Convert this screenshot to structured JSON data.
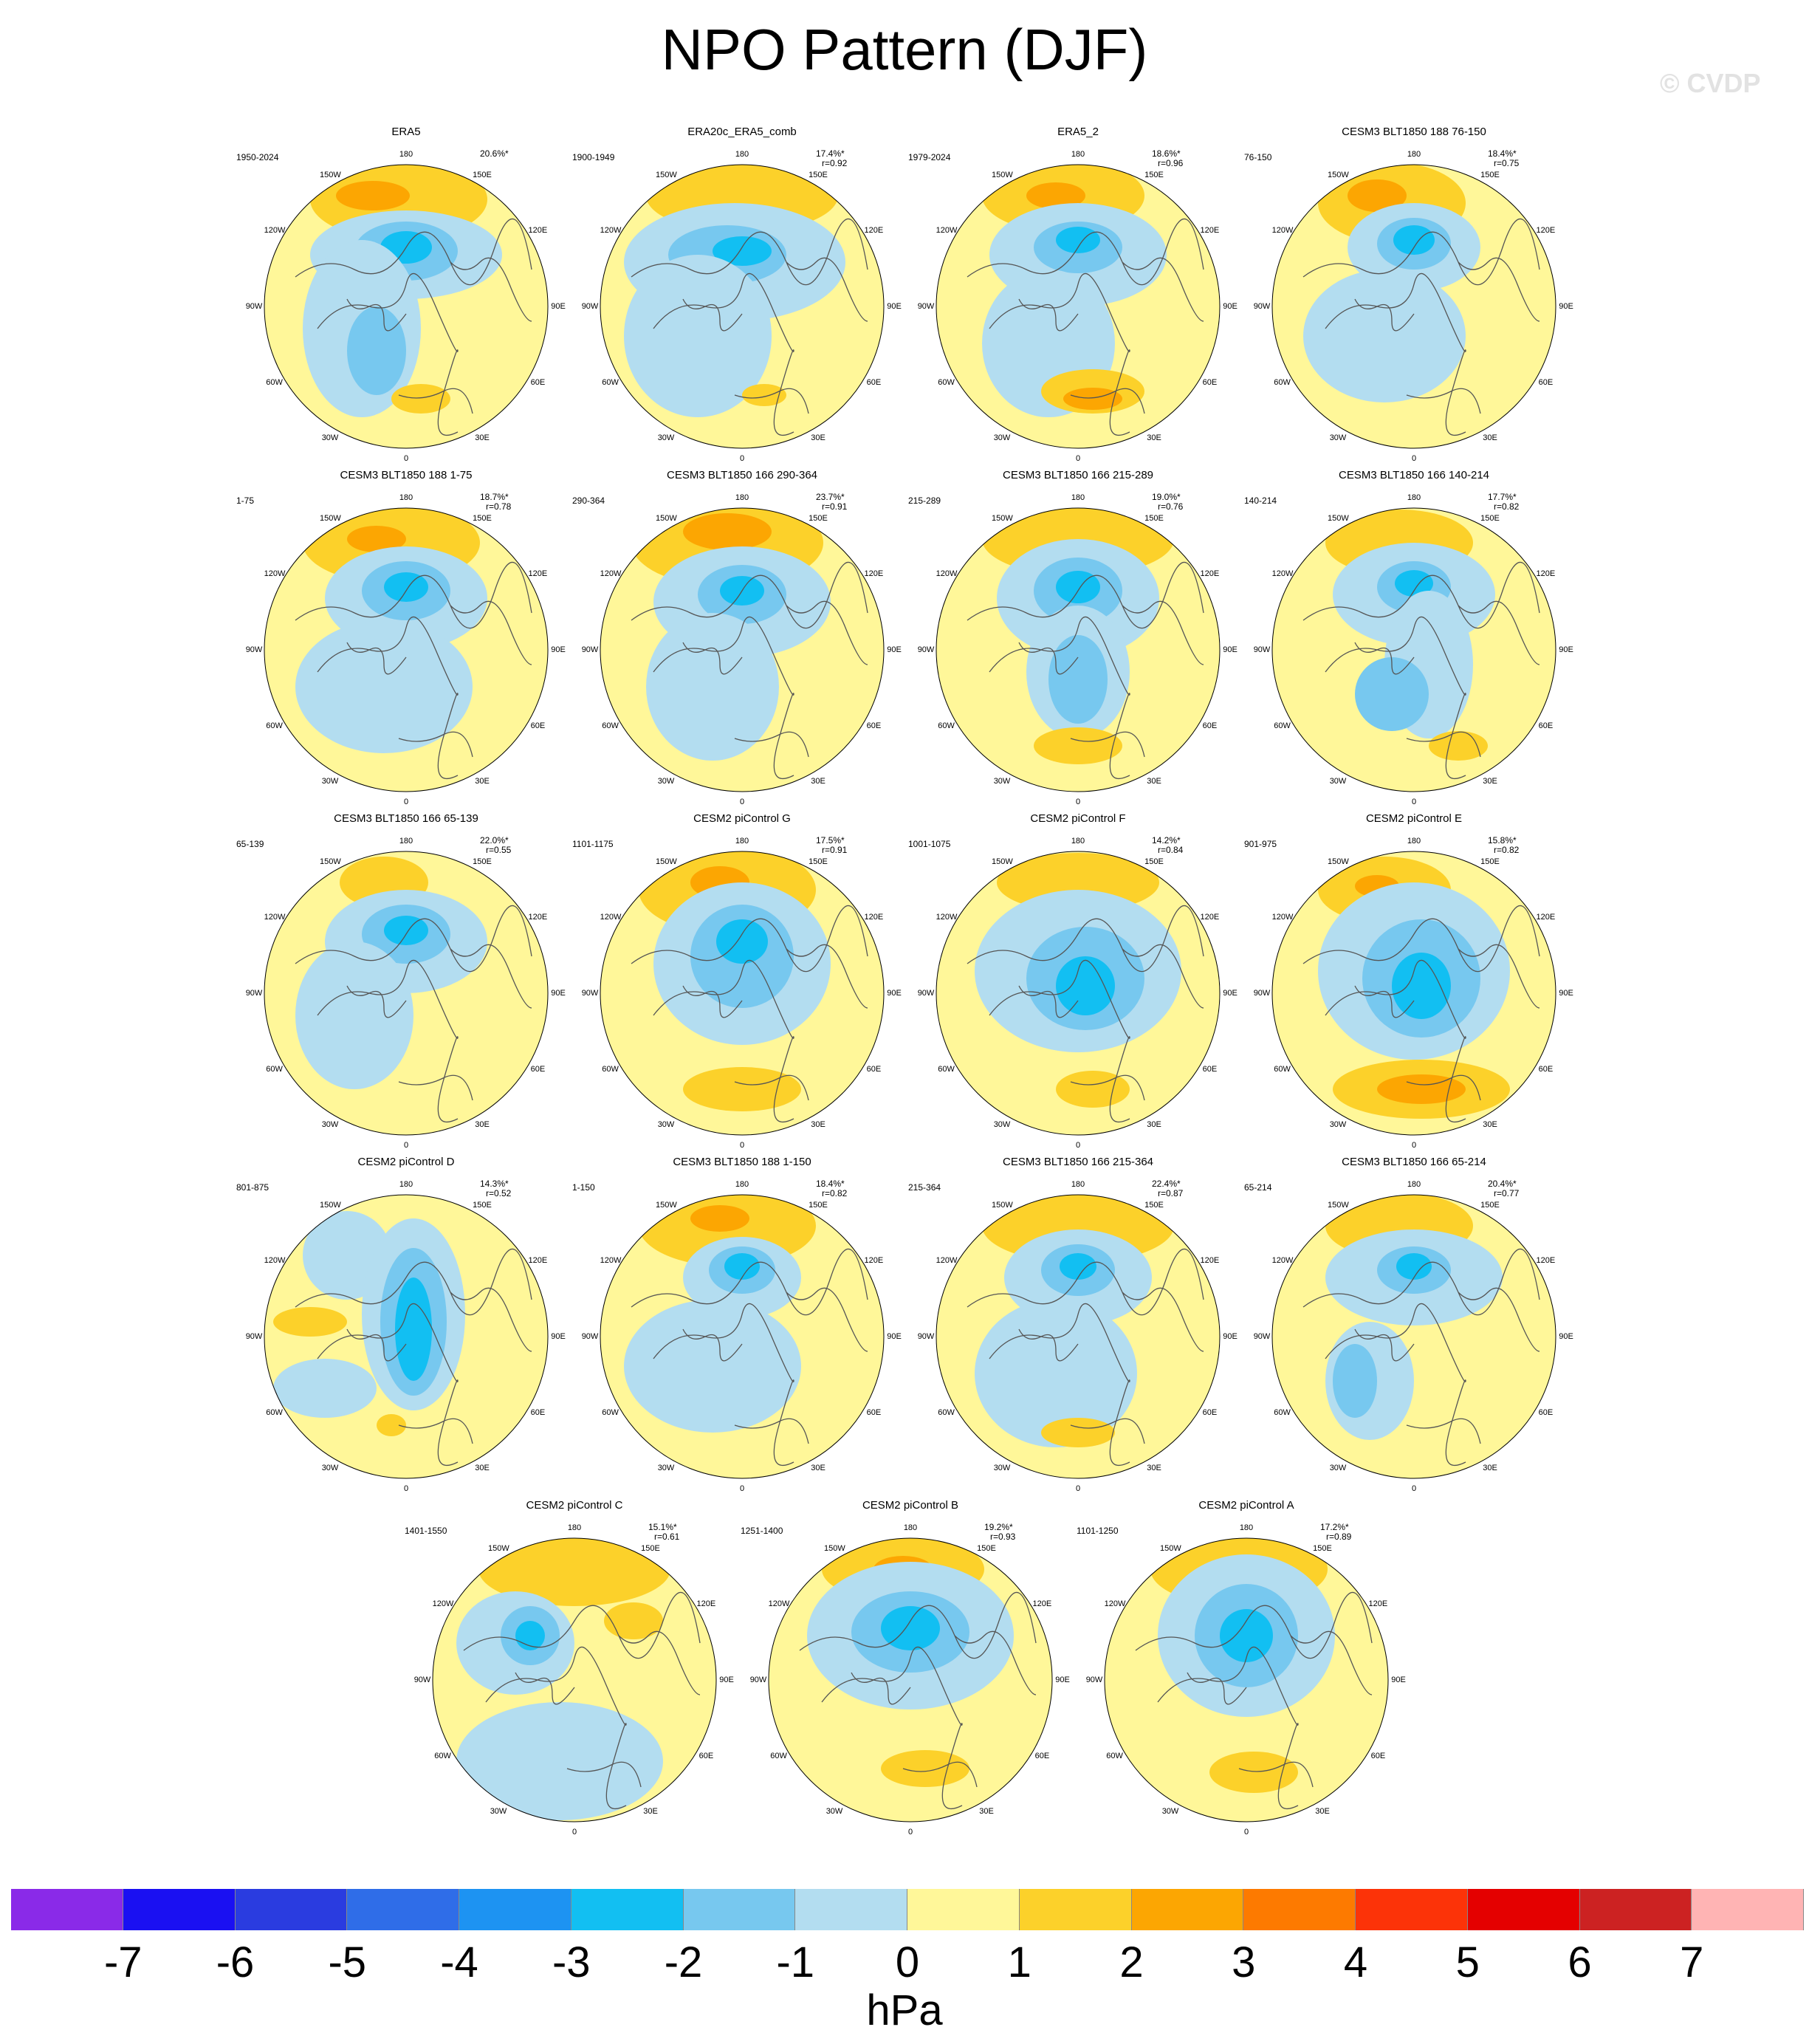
{
  "title": "NPO Pattern (DJF)",
  "watermark": "© CVDP",
  "units": "hPa",
  "lon_labels": [
    "180",
    "150W",
    "150E",
    "120W",
    "120E",
    "90W",
    "90E",
    "60W",
    "60E",
    "30W",
    "30E",
    "0"
  ],
  "colorbar": {
    "labels": [
      "-7",
      "-6",
      "-5",
      "-4",
      "-3",
      "-2",
      "-1",
      "0",
      "1",
      "2",
      "3",
      "4",
      "5",
      "6",
      "7"
    ],
    "colors": [
      "#8a2ae8",
      "#1a10f2",
      "#2a3ce0",
      "#2f6de8",
      "#1d93f2",
      "#12bff2",
      "#77c8ef",
      "#b3ddf0",
      "#fff799",
      "#fcd12a",
      "#fca602",
      "#fd7a00",
      "#fc3308",
      "#e40000",
      "#cc2222",
      "#ffb4b4"
    ]
  },
  "panels": [
    {
      "title": "ERA5",
      "period": "1950-2024",
      "pct": "20.6%*",
      "r": ""
    },
    {
      "title": "ERA20c_ERA5_comb",
      "period": "1900-1949",
      "pct": "17.4%*",
      "r": "r=0.92"
    },
    {
      "title": "ERA5_2",
      "period": "1979-2024",
      "pct": "18.6%*",
      "r": "r=0.96"
    },
    {
      "title": "CESM3 BLT1850 188 76-150",
      "period": "76-150",
      "pct": "18.4%*",
      "r": "r=0.75"
    },
    {
      "title": "CESM3 BLT1850 188 1-75",
      "period": "1-75",
      "pct": "18.7%*",
      "r": "r=0.78"
    },
    {
      "title": "CESM3 BLT1850 166 290-364",
      "period": "290-364",
      "pct": "23.7%*",
      "r": "r=0.91"
    },
    {
      "title": "CESM3 BLT1850 166 215-289",
      "period": "215-289",
      "pct": "19.0%*",
      "r": "r=0.76"
    },
    {
      "title": "CESM3 BLT1850 166 140-214",
      "period": "140-214",
      "pct": "17.7%*",
      "r": "r=0.82"
    },
    {
      "title": "CESM3 BLT1850 166 65-139",
      "period": "65-139",
      "pct": "22.0%*",
      "r": "r=0.55"
    },
    {
      "title": "CESM2 piControl G",
      "period": "1101-1175",
      "pct": "17.5%*",
      "r": "r=0.91"
    },
    {
      "title": "CESM2 piControl F",
      "period": "1001-1075",
      "pct": "14.2%*",
      "r": "r=0.84"
    },
    {
      "title": "CESM2 piControl E",
      "period": "901-975",
      "pct": "15.8%*",
      "r": "r=0.82"
    },
    {
      "title": "CESM2 piControl D",
      "period": "801-875",
      "pct": "14.3%*",
      "r": "r=0.52"
    },
    {
      "title": "CESM3 BLT1850 188 1-150",
      "period": "1-150",
      "pct": "18.4%*",
      "r": "r=0.82"
    },
    {
      "title": "CESM3 BLT1850 166 215-364",
      "period": "215-364",
      "pct": "22.4%*",
      "r": "r=0.87"
    },
    {
      "title": "CESM3 BLT1850 166 65-214",
      "period": "65-214",
      "pct": "20.4%*",
      "r": "r=0.77"
    },
    {
      "title": "CESM2 piControl C",
      "period": "1401-1550",
      "pct": "15.1%*",
      "r": "r=0.61"
    },
    {
      "title": "CESM2 piControl B",
      "period": "1251-1400",
      "pct": "19.2%*",
      "r": "r=0.93"
    },
    {
      "title": "CESM2 piControl A",
      "period": "1101-1250",
      "pct": "17.2%*",
      "r": "r=0.89"
    }
  ]
}
